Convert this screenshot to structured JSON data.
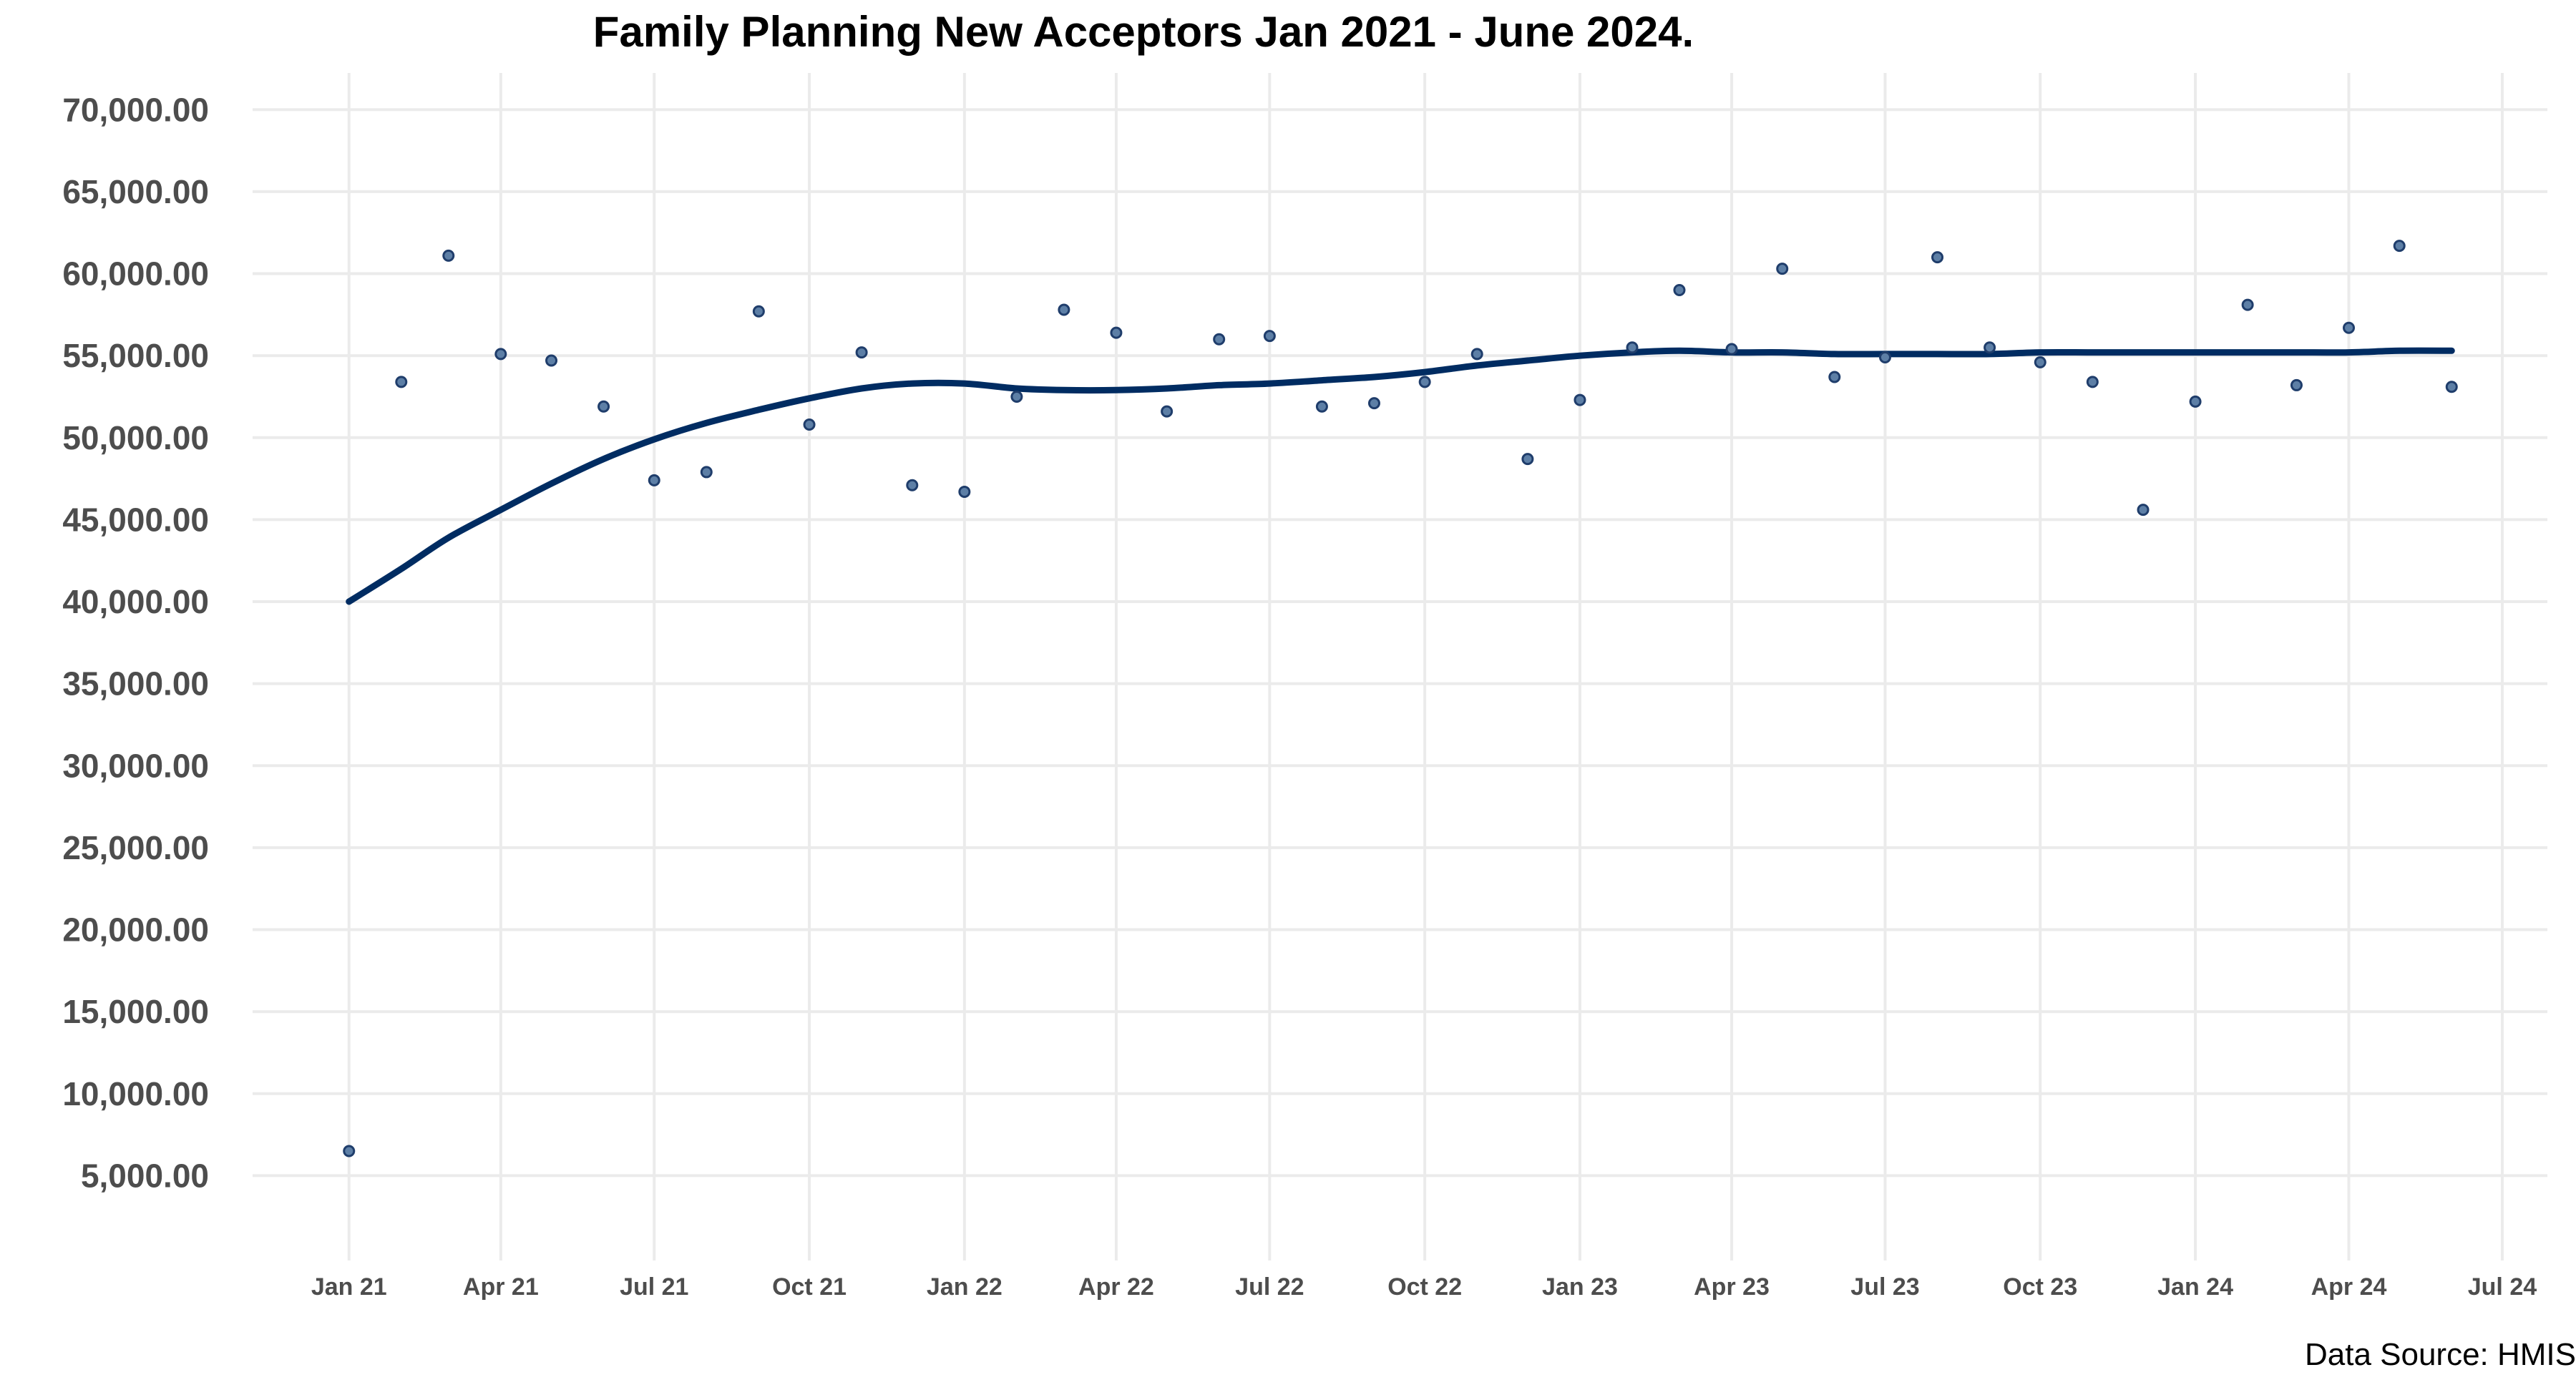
{
  "chart_data": {
    "type": "scatter",
    "title": "Family Planning New Acceptors Jan 2021 - June 2024.",
    "caption": "Data Source: HMIS",
    "xlabel": "",
    "ylabel": "",
    "ylim": [
      0,
      72500
    ],
    "yticks": [
      {
        "value": 5000,
        "label": "5,000.00"
      },
      {
        "value": 10000,
        "label": "10,000.00"
      },
      {
        "value": 15000,
        "label": "15,000.00"
      },
      {
        "value": 20000,
        "label": "20,000.00"
      },
      {
        "value": 25000,
        "label": "25,000.00"
      },
      {
        "value": 30000,
        "label": "30,000.00"
      },
      {
        "value": 35000,
        "label": "35,000.00"
      },
      {
        "value": 40000,
        "label": "40,000.00"
      },
      {
        "value": 45000,
        "label": "45,000.00"
      },
      {
        "value": 50000,
        "label": "50,000.00"
      },
      {
        "value": 55000,
        "label": "55,000.00"
      },
      {
        "value": 60000,
        "label": "60,000.00"
      },
      {
        "value": 65000,
        "label": "65,000.00"
      },
      {
        "value": 70000,
        "label": "70,000.00"
      }
    ],
    "xlim": [
      "2020-11-01",
      "2024-08-01"
    ],
    "xticks": [
      {
        "date": "2021-01-01",
        "label": "Jan 21"
      },
      {
        "date": "2021-04-01",
        "label": "Apr 21"
      },
      {
        "date": "2021-07-01",
        "label": "Jul 21"
      },
      {
        "date": "2021-10-01",
        "label": "Oct 21"
      },
      {
        "date": "2022-01-01",
        "label": "Jan 22"
      },
      {
        "date": "2022-04-01",
        "label": "Apr 22"
      },
      {
        "date": "2022-07-01",
        "label": "Jul 22"
      },
      {
        "date": "2022-10-01",
        "label": "Oct 22"
      },
      {
        "date": "2023-01-01",
        "label": "Jan 23"
      },
      {
        "date": "2023-04-01",
        "label": "Apr 23"
      },
      {
        "date": "2023-07-01",
        "label": "Jul 23"
      },
      {
        "date": "2023-10-01",
        "label": "Oct 23"
      },
      {
        "date": "2024-01-01",
        "label": "Jan 24"
      },
      {
        "date": "2024-04-01",
        "label": "Apr 24"
      },
      {
        "date": "2024-07-01",
        "label": "Jul 24"
      }
    ],
    "grid": true,
    "legend": "none",
    "colors": {
      "points": "#5d7fa6",
      "trend": "#002c62",
      "grid": "#ebebeb"
    },
    "series": [
      {
        "kind": "points",
        "x": [
          "2021-01-01",
          "2021-02-01",
          "2021-03-01",
          "2021-04-01",
          "2021-05-01",
          "2021-06-01",
          "2021-07-01",
          "2021-08-01",
          "2021-09-01",
          "2021-10-01",
          "2021-11-01",
          "2021-12-01",
          "2022-01-01",
          "2022-02-01",
          "2022-03-01",
          "2022-04-01",
          "2022-05-01",
          "2022-06-01",
          "2022-07-01",
          "2022-08-01",
          "2022-09-01",
          "2022-10-01",
          "2022-11-01",
          "2022-12-01",
          "2023-01-01",
          "2023-02-01",
          "2023-03-01",
          "2023-04-01",
          "2023-05-01",
          "2023-06-01",
          "2023-07-01",
          "2023-08-01",
          "2023-09-01",
          "2023-10-01",
          "2023-11-01",
          "2023-12-01",
          "2024-01-01",
          "2024-02-01",
          "2024-03-01",
          "2024-04-01",
          "2024-05-01",
          "2024-06-01"
        ],
        "y": [
          6500,
          53400,
          61100,
          55100,
          54700,
          51900,
          47400,
          47900,
          57700,
          50800,
          55200,
          47100,
          46700,
          52500,
          57800,
          56400,
          51600,
          56000,
          56200,
          51900,
          52100,
          53400,
          55100,
          48700,
          52300,
          55500,
          59000,
          55400,
          60300,
          53700,
          54900,
          61000,
          55500,
          54600,
          53400,
          45600,
          52200,
          58100,
          53200,
          56700,
          61700,
          53100
        ]
      },
      {
        "kind": "trend",
        "x": [
          "2021-01-01",
          "2021-02-01",
          "2021-03-01",
          "2021-04-01",
          "2021-05-01",
          "2021-06-01",
          "2021-07-01",
          "2021-08-01",
          "2021-09-01",
          "2021-10-01",
          "2021-11-01",
          "2021-12-01",
          "2022-01-01",
          "2022-02-01",
          "2022-03-01",
          "2022-04-01",
          "2022-05-01",
          "2022-06-01",
          "2022-07-01",
          "2022-08-01",
          "2022-09-01",
          "2022-10-01",
          "2022-11-01",
          "2022-12-01",
          "2023-01-01",
          "2023-02-01",
          "2023-03-01",
          "2023-04-01",
          "2023-05-01",
          "2023-06-01",
          "2023-07-01",
          "2023-08-01",
          "2023-09-01",
          "2023-10-01",
          "2023-11-01",
          "2023-12-01",
          "2024-01-01",
          "2024-02-01",
          "2024-03-01",
          "2024-04-01",
          "2024-05-01",
          "2024-06-01"
        ],
        "y": [
          40000,
          42000,
          43900,
          45600,
          47200,
          48700,
          49900,
          50900,
          51700,
          52400,
          53000,
          53300,
          53300,
          53000,
          52900,
          52900,
          53000,
          53200,
          53300,
          53500,
          53700,
          54000,
          54400,
          54700,
          55000,
          55200,
          55300,
          55200,
          55200,
          55100,
          55100,
          55100,
          55100,
          55200,
          55200,
          55200,
          55200,
          55200,
          55200,
          55200,
          55300,
          55300
        ]
      }
    ]
  }
}
